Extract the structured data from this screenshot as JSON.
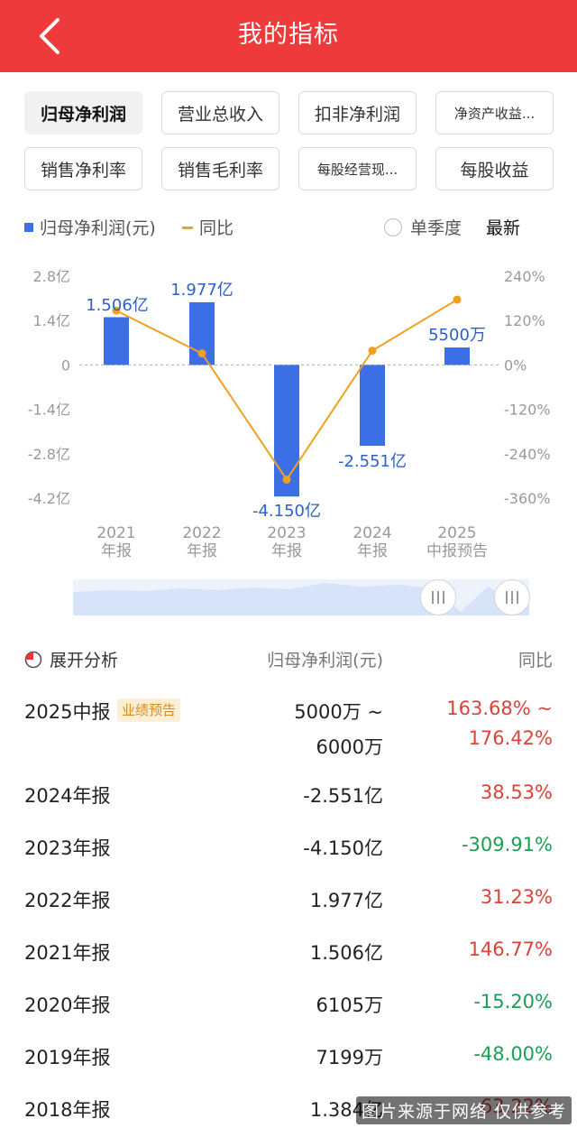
{
  "header": {
    "title": "我的指标"
  },
  "tabs": [
    {
      "label": "归母净利润",
      "active": true
    },
    {
      "label": "营业总收入"
    },
    {
      "label": "扣非净利润"
    },
    {
      "label": "净资产收益..."
    },
    {
      "label": "销售净利率"
    },
    {
      "label": "销售毛利率"
    },
    {
      "label": "每股经营现..."
    },
    {
      "label": "每股收益"
    }
  ],
  "legend": {
    "bar_label": "归母净利润(元)",
    "line_label": "同比",
    "single_quarter_label": "单季度",
    "latest_label": "最新"
  },
  "colors": {
    "bar": "#3c6ee6",
    "line": "#f0a020",
    "header": "#ee3a3a",
    "up": "#d9433a",
    "down": "#1f9d55"
  },
  "chart_data": {
    "type": "bar",
    "categories": [
      [
        "2021",
        "年报"
      ],
      [
        "2022",
        "年报"
      ],
      [
        "2023",
        "年报"
      ],
      [
        "2024",
        "年报"
      ],
      [
        "2025",
        "中报预告"
      ]
    ],
    "series": [
      {
        "values": [
          1.506,
          1.977,
          -4.15,
          -2.551,
          0.55
        ]
      },
      {
        "values": [
          146.77,
          31.23,
          -309.91,
          38.53,
          176.42
        ]
      }
    ],
    "data_labels": [
      "1.506亿",
      "1.977亿",
      "-4.150亿",
      "-2.551亿",
      "5500万"
    ],
    "y_left": {
      "ticks": [
        "2.8亿",
        "1.4亿",
        "0",
        "-1.4亿",
        "-2.8亿",
        "-4.2亿"
      ],
      "ylim": [
        -4.2,
        2.8
      ]
    },
    "y_right": {
      "ticks": [
        "240%",
        "120%",
        "0%",
        "-120%",
        "-240%",
        "-360%"
      ],
      "ylim": [
        -360,
        240
      ]
    },
    "zero_line": "dashed"
  },
  "analysis": {
    "title": "展开分析",
    "col_value": "归母净利润(元)",
    "col_yoy": "同比",
    "rows": [
      {
        "period": "2025中报",
        "badge": "业绩预告",
        "value": "5000万 ~",
        "value2": "6000万",
        "yoy": "163.68% ~",
        "yoy2": "176.42%",
        "dir": "up"
      },
      {
        "period": "2024年报",
        "value": "-2.551亿",
        "yoy": "38.53%",
        "dir": "up"
      },
      {
        "period": "2023年报",
        "value": "-4.150亿",
        "yoy": "-309.91%",
        "dir": "down"
      },
      {
        "period": "2022年报",
        "value": "1.977亿",
        "yoy": "31.23%",
        "dir": "up"
      },
      {
        "period": "2021年报",
        "value": "1.506亿",
        "yoy": "146.77%",
        "dir": "up"
      },
      {
        "period": "2020年报",
        "value": "6105万",
        "yoy": "-15.20%",
        "dir": "down"
      },
      {
        "period": "2019年报",
        "value": "7199万",
        "yoy": "-48.00%",
        "dir": "down"
      },
      {
        "period": "2018年报",
        "value": "1.384亿",
        "yoy": "63.22%",
        "dir": "up"
      }
    ]
  },
  "watermark": "图片来源于网络 仅供参考"
}
